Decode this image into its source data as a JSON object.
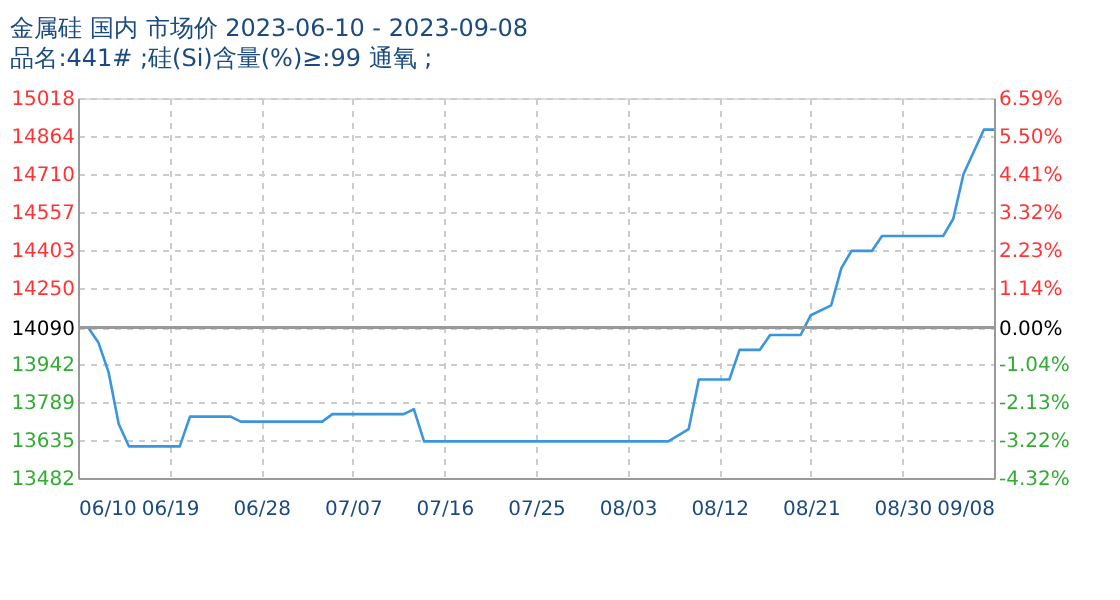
{
  "chart_data": {
    "type": "line",
    "title": "金属硅 国内 市场价 2023-06-10 - 2023-09-08",
    "subtitle": "品名:441# ;硅(Si)含量(%)≥:99 通氧 ;",
    "x": [
      "2023-06-10",
      "2023-06-11",
      "2023-06-12",
      "2023-06-13",
      "2023-06-14",
      "2023-06-15",
      "2023-06-20",
      "2023-06-21",
      "2023-06-25",
      "2023-06-26",
      "2023-07-04",
      "2023-07-05",
      "2023-07-12",
      "2023-07-13",
      "2023-07-14",
      "2023-08-07",
      "2023-08-09",
      "2023-08-10",
      "2023-08-13",
      "2023-08-14",
      "2023-08-16",
      "2023-08-17",
      "2023-08-20",
      "2023-08-21",
      "2023-08-23",
      "2023-08-24",
      "2023-08-25",
      "2023-08-27",
      "2023-08-28",
      "2023-09-03",
      "2023-09-04",
      "2023-09-05",
      "2023-09-07",
      "2023-09-08"
    ],
    "series": [
      {
        "color": "#3a96dd",
        "values": [
          14090,
          14090,
          14030,
          13910,
          13700,
          13610,
          13610,
          13730,
          13730,
          13710,
          13710,
          13740,
          13740,
          13760,
          13630,
          13630,
          13680,
          13880,
          13880,
          14000,
          14000,
          14060,
          14060,
          14140,
          14180,
          14330,
          14400,
          14400,
          14460,
          14460,
          14530,
          14710,
          14890,
          14890
        ]
      }
    ],
    "xlim": [
      "2023-06-10",
      "2023-09-08"
    ],
    "xticks": [
      {
        "value": "2023-06-10",
        "label": "06/10"
      },
      {
        "value": "2023-06-19",
        "label": "06/19"
      },
      {
        "value": "2023-06-28",
        "label": "06/28"
      },
      {
        "value": "2023-07-07",
        "label": "07/07"
      },
      {
        "value": "2023-07-16",
        "label": "07/16"
      },
      {
        "value": "2023-07-25",
        "label": "07/25"
      },
      {
        "value": "2023-08-03",
        "label": "08/03"
      },
      {
        "value": "2023-08-12",
        "label": "08/12"
      },
      {
        "value": "2023-08-21",
        "label": "08/21"
      },
      {
        "value": "2023-08-30",
        "label": "08/30"
      },
      {
        "value": "2023-09-08",
        "label": "09/08"
      }
    ],
    "ylim": [
      13482,
      15018
    ],
    "yticks": [
      13482,
      13635,
      13789,
      13942,
      14090,
      14250,
      14403,
      14557,
      14710,
      14864,
      15018
    ],
    "y2lim": [
      -4.32,
      6.59
    ],
    "y2ticks": [
      {
        "value": -4.32,
        "label": "-4.32%"
      },
      {
        "value": -3.22,
        "label": "-3.22%"
      },
      {
        "value": -2.13,
        "label": "-2.13%"
      },
      {
        "value": -1.04,
        "label": "-1.04%"
      },
      {
        "value": 0,
        "label": "0.00%"
      },
      {
        "value": 1.14,
        "label": "1.14%"
      },
      {
        "value": 2.23,
        "label": "2.23%"
      },
      {
        "value": 3.32,
        "label": "3.32%"
      },
      {
        "value": 4.41,
        "label": "4.41%"
      },
      {
        "value": 5.5,
        "label": "5.50%"
      },
      {
        "value": 6.59,
        "label": "6.59%"
      }
    ],
    "ref_lines": [
      {
        "axis": "y",
        "value": 14090,
        "color": "#999999"
      }
    ],
    "grid": true,
    "marker": "none",
    "line_style": "solid"
  }
}
